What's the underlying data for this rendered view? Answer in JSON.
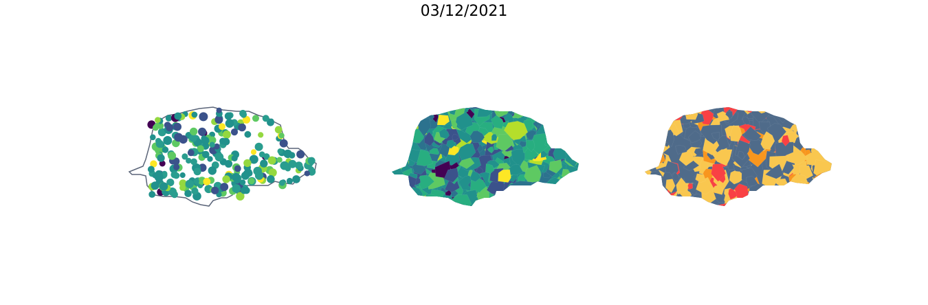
{
  "figure": {
    "title": "03/12/2021"
  },
  "panels": [
    {
      "type": "point-map",
      "outline_color": "#5a6478",
      "point_colors": [
        "#440154",
        "#3b528b",
        "#21918c",
        "#2a9d8f",
        "#5ec962",
        "#94d840",
        "#fde725"
      ]
    },
    {
      "type": "choropleth",
      "fill_colors": [
        "#440154",
        "#3b528b",
        "#2c728e",
        "#21918c",
        "#28ae80",
        "#5ec962",
        "#b5de2b",
        "#fde725"
      ]
    },
    {
      "type": "choropleth-categorical",
      "fill_colors": [
        "#4f6b8a",
        "#f9c74f",
        "#f8961e",
        "#f94144"
      ]
    }
  ]
}
